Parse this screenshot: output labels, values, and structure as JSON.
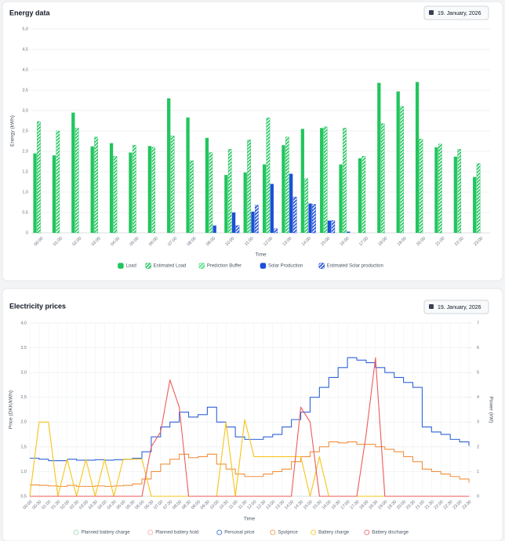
{
  "chart_data": [
    {
      "type": "bar",
      "title": "Energy data",
      "date": "19. January, 2026",
      "ylabel": "Energy (kWh)",
      "xlabel": "Time",
      "grid": true,
      "categories": [
        "00:00",
        "01:00",
        "02:00",
        "03:00",
        "04:00",
        "05:00",
        "06:00",
        "07:00",
        "08:00",
        "09:00",
        "10:00",
        "11:00",
        "12:00",
        "13:00",
        "14:00",
        "15:00",
        "16:00",
        "17:00",
        "18:00",
        "19:00",
        "20:00",
        "21:00",
        "22:00",
        "23:00"
      ],
      "ylim": [
        0,
        5
      ],
      "yticks": [
        0,
        {
          "value": 0.5,
          "label": "0,5"
        },
        {
          "value": 1,
          "label": "1,0"
        },
        {
          "value": 1.5,
          "label": "1,5"
        },
        {
          "value": 2,
          "label": "2,0"
        },
        {
          "value": 2.5,
          "label": "2,5"
        },
        {
          "value": 3,
          "label": "3,0"
        },
        {
          "value": 3.5,
          "label": "3,5"
        },
        {
          "value": 4,
          "label": "4,0"
        },
        {
          "value": 4.5,
          "label": "4,5"
        },
        {
          "value": 5,
          "label": "5,0"
        }
      ],
      "series": [
        {
          "name": "Load",
          "color": "#22c55e",
          "hatched": false,
          "values": [
            1.95,
            1.9,
            2.95,
            2.12,
            2.2,
            1.97,
            2.13,
            3.3,
            2.83,
            2.33,
            1.42,
            1.48,
            1.68,
            2.15,
            2.55,
            2.57,
            1.68,
            1.83,
            3.68,
            3.47,
            3.7,
            2.1,
            1.87,
            1.37
          ]
        },
        {
          "name": "Estimated Load",
          "color": "#22c55e",
          "hatched": true,
          "values": [
            2.73,
            2.5,
            2.57,
            2.35,
            1.88,
            2.15,
            2.1,
            2.38,
            1.77,
            1.97,
            2.05,
            2.28,
            2.82,
            2.35,
            1.33,
            2.6,
            2.57,
            1.88,
            2.68,
            3.1,
            2.3,
            2.18,
            2.05,
            1.7
          ]
        },
        {
          "name": "Prediction Buffer",
          "color": "#4ade80",
          "hatched": true,
          "values": [
            null,
            null,
            null,
            null,
            null,
            null,
            null,
            null,
            null,
            null,
            null,
            null,
            null,
            null,
            null,
            null,
            null,
            null,
            null,
            null,
            null,
            null,
            null,
            null
          ]
        },
        {
          "name": "Solar Production",
          "color": "#1d4ed8",
          "hatched": false,
          "values": [
            0,
            0,
            0,
            0,
            0,
            0,
            0,
            0,
            0,
            0.18,
            0.5,
            0.52,
            1.2,
            1.45,
            0.72,
            0.3,
            0.03,
            0,
            0,
            0,
            0,
            0,
            0,
            0
          ]
        },
        {
          "name": "Estimated Solar production",
          "color": "#1d4ed8",
          "hatched": true,
          "values": [
            0,
            0,
            0,
            0,
            0,
            0,
            0,
            0,
            0,
            0,
            0.18,
            0.68,
            0.1,
            0.88,
            0.7,
            0.3,
            0,
            0,
            0,
            0,
            0,
            0,
            0,
            0
          ]
        }
      ]
    },
    {
      "type": "line",
      "title": "Electricity prices",
      "date": "19. January, 2026",
      "ylabel": "Price (DKK/kWh)",
      "y2label": "Power (kW)",
      "xlabel": "Time",
      "grid": true,
      "categories": [
        "00:00",
        "00:30",
        "01:00",
        "01:30",
        "02:00",
        "02:30",
        "03:00",
        "03:30",
        "04:00",
        "04:30",
        "05:00",
        "05:30",
        "06:00",
        "06:30",
        "07:00",
        "07:30",
        "08:00",
        "08:30",
        "09:00",
        "09:30",
        "10:00",
        "10:30",
        "11:00",
        "11:30",
        "12:00",
        "12:30",
        "13:00",
        "13:30",
        "14:00",
        "14:30",
        "15:00",
        "15:30",
        "16:00",
        "16:30",
        "17:00",
        "17:30",
        "18:00",
        "18:30",
        "19:00",
        "19:30",
        "20:00",
        "20:30",
        "21:00",
        "21:30",
        "22:00",
        "22:30",
        "23:00",
        "23:30"
      ],
      "ylim": [
        0.5,
        4
      ],
      "yticks": [
        {
          "value": 0.5,
          "label": "0,5"
        },
        {
          "value": 1,
          "label": "1,0"
        },
        {
          "value": 1.5,
          "label": "1,5"
        },
        {
          "value": 2,
          "label": "2,0"
        },
        {
          "value": 2.5,
          "label": "2,5"
        },
        {
          "value": 3,
          "label": "3,0"
        },
        {
          "value": 3.5,
          "label": "3,5"
        },
        {
          "value": 4,
          "label": "4,0"
        }
      ],
      "y2lim": [
        0,
        7
      ],
      "y2ticks": [
        0,
        1,
        2,
        3,
        4,
        5,
        6,
        7
      ],
      "series": [
        {
          "name": "Planned battery charge",
          "color": "#9ad9b5",
          "axis": "y2",
          "step": false,
          "values": [
            null,
            null,
            null,
            null,
            null,
            null,
            null,
            null,
            null,
            null,
            null,
            null,
            null,
            null,
            null,
            null,
            null,
            null,
            null,
            null,
            null,
            null,
            null,
            null,
            null,
            null,
            null,
            null,
            null,
            null,
            null,
            null,
            null,
            null,
            null,
            null,
            null,
            null,
            null,
            null,
            null,
            null,
            null,
            null,
            null,
            null,
            null,
            null
          ]
        },
        {
          "name": "Planned battery hold",
          "color": "#f4a9a9",
          "axis": "y2",
          "step": false,
          "values": [
            null,
            null,
            null,
            null,
            null,
            null,
            null,
            null,
            null,
            null,
            null,
            null,
            null,
            null,
            null,
            null,
            null,
            null,
            null,
            null,
            null,
            null,
            null,
            null,
            null,
            null,
            null,
            null,
            null,
            null,
            null,
            null,
            null,
            null,
            null,
            null,
            null,
            null,
            null,
            null,
            null,
            null,
            null,
            null,
            null,
            null,
            null,
            null
          ]
        },
        {
          "name": "Personal price",
          "color": "#2f62d8",
          "axis": "y",
          "step": true,
          "values": [
            1.27,
            1.25,
            1.22,
            1.22,
            1.25,
            1.23,
            1.23,
            1.24,
            1.23,
            1.24,
            1.25,
            1.27,
            1.4,
            1.7,
            1.9,
            2.0,
            2.2,
            2.1,
            2.15,
            2.3,
            2.0,
            1.9,
            1.7,
            1.65,
            1.65,
            1.7,
            1.75,
            1.9,
            2.05,
            2.2,
            2.5,
            2.7,
            2.9,
            3.1,
            3.3,
            3.25,
            3.2,
            3.1,
            3.0,
            2.9,
            2.8,
            2.7,
            1.9,
            1.8,
            1.75,
            1.65,
            1.6,
            1.52
          ]
        },
        {
          "name": "Spotprice",
          "color": "#f0903c",
          "axis": "y",
          "step": true,
          "values": [
            0.73,
            0.72,
            0.71,
            0.7,
            0.72,
            0.7,
            0.7,
            0.71,
            0.7,
            0.71,
            0.72,
            0.75,
            0.85,
            1.0,
            1.15,
            1.25,
            1.35,
            1.28,
            1.3,
            1.35,
            1.15,
            1.05,
            0.95,
            0.9,
            0.9,
            0.95,
            1.0,
            1.05,
            1.2,
            1.3,
            1.4,
            1.5,
            1.6,
            1.58,
            1.6,
            1.55,
            1.55,
            1.5,
            1.45,
            1.4,
            1.3,
            1.2,
            1.05,
            1.0,
            0.95,
            0.9,
            0.85,
            0.78
          ]
        },
        {
          "name": "Battery charge",
          "color": "#f5c518",
          "axis": "y2",
          "step": false,
          "values": [
            0,
            3.0,
            3.0,
            0,
            1.5,
            0,
            1.5,
            0,
            1.5,
            0,
            1.5,
            1.5,
            1.5,
            0,
            0,
            0,
            0,
            0,
            0,
            0,
            0,
            3.0,
            0,
            3.1,
            1.6,
            1.6,
            1.6,
            1.6,
            1.6,
            1.6,
            0,
            1.6,
            0,
            0,
            0,
            0,
            0,
            0,
            0,
            0,
            0,
            0,
            0,
            0,
            0,
            0,
            0,
            0
          ]
        },
        {
          "name": "Battery discharge",
          "color": "#ef5a5a",
          "axis": "y2",
          "step": false,
          "values": [
            0,
            0,
            0,
            0,
            0,
            0,
            0,
            0,
            0,
            0,
            0,
            0,
            0,
            2.0,
            2.6,
            4.7,
            3.6,
            0,
            0,
            0,
            0,
            0,
            0,
            0,
            0,
            0,
            0,
            0,
            0,
            3.6,
            3.0,
            0,
            0,
            0,
            0,
            0,
            2.5,
            5.6,
            0,
            0,
            0,
            0,
            0,
            0,
            0,
            0,
            0,
            0
          ]
        }
      ]
    }
  ]
}
